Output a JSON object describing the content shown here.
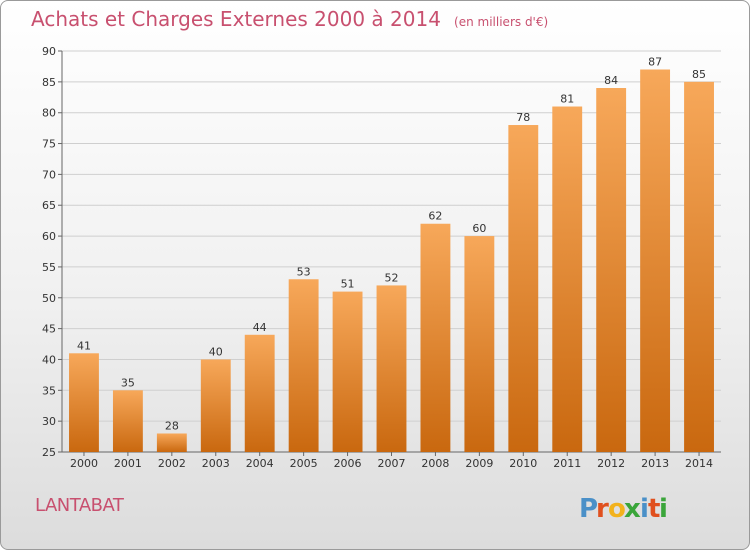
{
  "header": {
    "title": "Achats et Charges Externes 2000 à 2014",
    "subtitle": "(en milliers d'€)"
  },
  "footer": {
    "place": "LANTABAT",
    "brand": "Proxiti"
  },
  "colors": {
    "title": "#c8506f",
    "bar_top": "#f7a85a",
    "bar_bottom": "#c9680f",
    "grid": "#cfcfcf"
  },
  "chart_data": {
    "type": "bar",
    "title": "Achats et Charges Externes 2000 à 2014",
    "subtitle": "(en milliers d'€)",
    "xlabel": "",
    "ylabel": "",
    "categories": [
      "2000",
      "2001",
      "2002",
      "2003",
      "2004",
      "2005",
      "2006",
      "2007",
      "2008",
      "2009",
      "2010",
      "2011",
      "2012",
      "2013",
      "2014"
    ],
    "values": [
      41,
      35,
      28,
      40,
      44,
      53,
      51,
      52,
      62,
      60,
      78,
      81,
      84,
      87,
      85
    ],
    "ylim": [
      25,
      90
    ],
    "yticks": [
      25,
      30,
      35,
      40,
      45,
      50,
      55,
      60,
      65,
      70,
      75,
      80,
      85,
      90
    ],
    "grid": true,
    "legend": "none"
  }
}
